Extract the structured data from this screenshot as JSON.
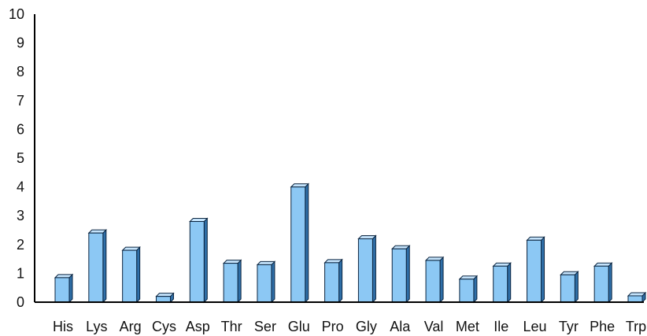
{
  "chart_data": {
    "type": "bar",
    "categories": [
      "His",
      "Lys",
      "Arg",
      "Cys",
      "Asp",
      "Thr",
      "Ser",
      "Glu",
      "Pro",
      "Gly",
      "Ala",
      "Val",
      "Met",
      "Ile",
      "Leu",
      "Tyr",
      "Phe",
      "Trp"
    ],
    "values": [
      0.85,
      2.4,
      1.8,
      0.2,
      2.8,
      1.35,
      1.3,
      4.0,
      1.37,
      2.2,
      1.85,
      1.45,
      0.8,
      1.25,
      2.15,
      0.95,
      1.25,
      0.22
    ],
    "title": "",
    "xlabel": "",
    "ylabel": "",
    "ylim": [
      0,
      10
    ],
    "yticks": [
      "0",
      "1",
      "2",
      "3",
      "4",
      "5",
      "6",
      "7",
      "8",
      "9",
      "10"
    ],
    "grid": false,
    "legend": "none",
    "colors": {
      "bar_front": "#8cc8f4",
      "bar_side": "#2f6fa8",
      "bar_top": "#c4e3fb",
      "bar_outline": "#0b2540",
      "axis": "#000000"
    }
  }
}
